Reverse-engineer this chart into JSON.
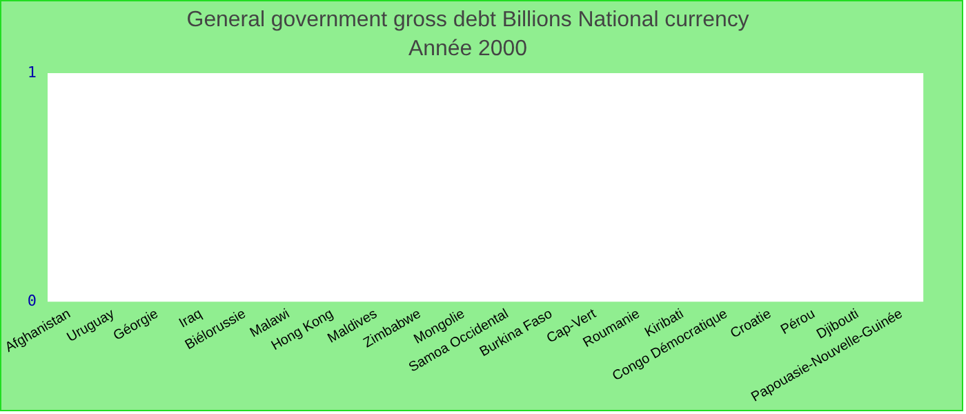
{
  "chart_data": {
    "type": "bar",
    "title": "General government gross debt Billions National currency",
    "subtitle": "Année 2000",
    "categories": [
      "Afghanistan",
      "Uruguay",
      "Géorgie",
      "Iraq",
      "Biélorussie",
      "Malawi",
      "Hong Kong",
      "Maldives",
      "Zimbabwe",
      "Mongolie",
      "Samoa Occidental",
      "Burkina Faso",
      "Cap-Vert",
      "Roumanie",
      "Kiribati",
      "Congo Démocratique",
      "Croatie",
      "Pérou",
      "Djibouti",
      "Papouasie-Nouvelle-Guinée"
    ],
    "values": [
      null,
      null,
      null,
      null,
      null,
      null,
      null,
      null,
      null,
      null,
      null,
      null,
      null,
      null,
      null,
      null,
      null,
      null,
      null,
      null
    ],
    "ylim": [
      0,
      1
    ],
    "yticks": [
      0,
      1
    ],
    "grid": false,
    "legend": false
  }
}
